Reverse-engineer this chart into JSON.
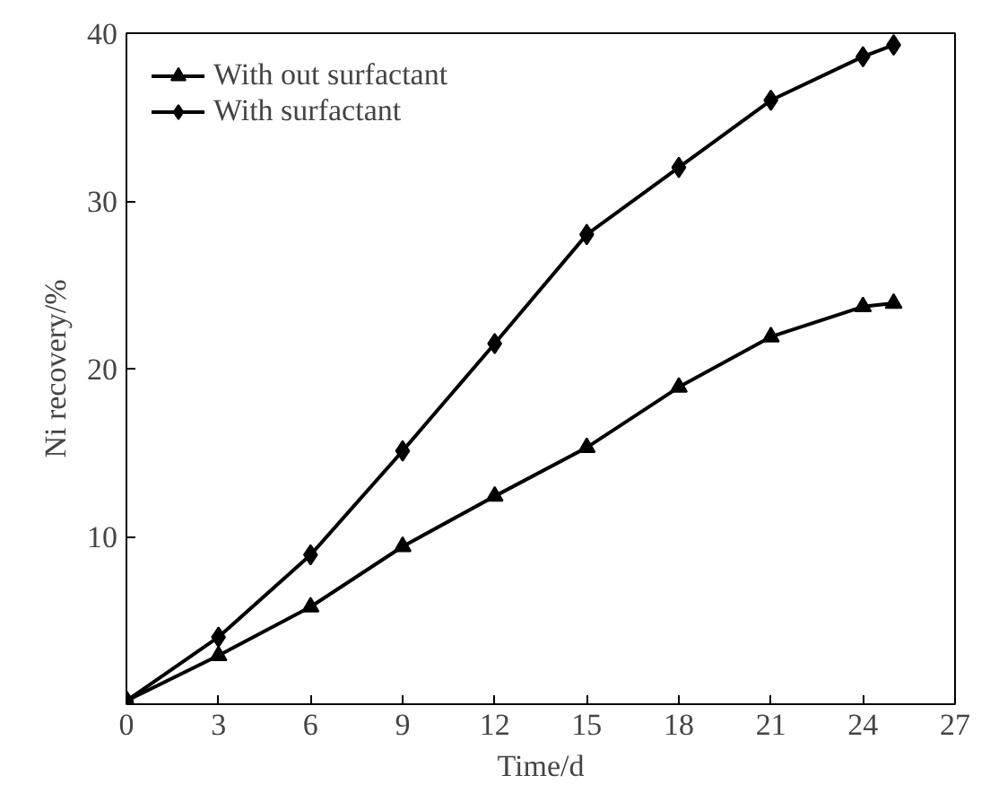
{
  "chart_data": {
    "type": "line",
    "xlabel": "Time/d",
    "ylabel": "Ni recovery/%",
    "x": [
      0,
      3,
      6,
      9,
      12,
      15,
      18,
      21,
      24,
      25
    ],
    "series": [
      {
        "name": "With out surfactant",
        "color": "#000000",
        "marker": "triangle",
        "values": [
          0.2,
          2.9,
          5.8,
          9.4,
          12.4,
          15.3,
          18.9,
          21.9,
          23.7,
          23.9
        ]
      },
      {
        "name": "With surfactant",
        "color": "#000000",
        "marker": "diamond",
        "values": [
          0.2,
          4.0,
          8.9,
          15.1,
          21.5,
          28.0,
          32.0,
          36.0,
          38.6,
          39.3
        ]
      }
    ],
    "xlim": [
      0,
      27
    ],
    "xticks": [
      0,
      3,
      6,
      9,
      12,
      15,
      18,
      21,
      24,
      27
    ],
    "ylim": [
      0,
      40
    ],
    "yticks": [
      10,
      20,
      30,
      40
    ],
    "grid": false,
    "legend": "top left",
    "line_style": "solid"
  }
}
